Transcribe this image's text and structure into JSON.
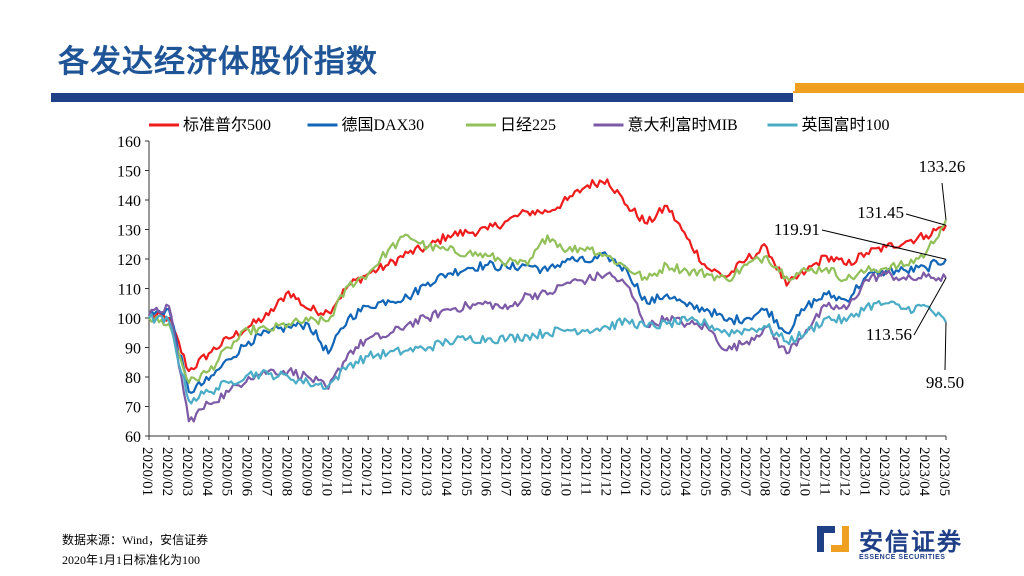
{
  "page": {
    "title": "各发达经济体股价指数",
    "source_note": "数据来源：Wind，安信证券",
    "base_note": "2020年1月1日标准化为100",
    "logo_cn": "安信证券",
    "logo_en": "ESSENCE SECURITIES"
  },
  "colors": {
    "title": "#1f5597",
    "bar_blue": "#1f3f87",
    "bar_orange": "#f0a020"
  },
  "chart_data": {
    "type": "line",
    "title": "",
    "xlabel": "",
    "ylabel": "",
    "ylim": [
      60,
      160
    ],
    "yticks": [
      "160",
      "150",
      "140",
      "130",
      "120",
      "110",
      "100",
      "90",
      "80",
      "70",
      "60"
    ],
    "categories": [
      "2020/01",
      "2020/02",
      "2020/03",
      "2020/04",
      "2020/05",
      "2020/06",
      "2020/07",
      "2020/08",
      "2020/09",
      "2020/10",
      "2020/11",
      "2020/12",
      "2021/01",
      "2021/02",
      "2021/03",
      "2021/04",
      "2021/05",
      "2021/06",
      "2021/07",
      "2021/08",
      "2021/09",
      "2021/10",
      "2021/11",
      "2021/12",
      "2022/01",
      "2022/02",
      "2022/03",
      "2022/04",
      "2022/05",
      "2022/06",
      "2022/07",
      "2022/08",
      "2022/09",
      "2022/10",
      "2022/11",
      "2022/12",
      "2023/01",
      "2023/02",
      "2023/03",
      "2023/04",
      "2023/05"
    ],
    "legend_position": "top",
    "series": [
      {
        "name": "标准普尔500",
        "color": "#ee1c1c",
        "values": [
          101,
          100,
          82,
          88,
          93,
          97,
          101,
          109,
          103,
          102,
          111,
          115,
          118,
          122,
          124,
          128,
          129,
          130,
          133,
          136,
          136,
          140,
          145,
          147,
          138,
          132,
          138,
          127,
          117,
          114,
          120,
          124,
          111,
          116,
          121,
          118,
          122,
          124,
          126,
          128,
          131.45
        ]
      },
      {
        "name": "德国DAX30",
        "color": "#1266b8",
        "values": [
          101,
          103,
          75,
          79,
          86,
          92,
          95,
          97,
          98,
          88,
          100,
          104,
          106,
          107,
          112,
          115,
          117,
          118,
          117,
          118,
          116,
          120,
          119,
          121,
          116,
          105,
          108,
          104,
          103,
          99,
          100,
          103,
          95,
          104,
          108,
          106,
          114,
          116,
          116,
          117,
          119.91
        ]
      },
      {
        "name": "日经225",
        "color": "#92c05a",
        "values": [
          100,
          98,
          78,
          82,
          90,
          96,
          96,
          98,
          99,
          99,
          111,
          115,
          123,
          128,
          124,
          123,
          122,
          121,
          119,
          118,
          128,
          123,
          124,
          121,
          117,
          113,
          118,
          116,
          115,
          113,
          118,
          121,
          114,
          116,
          117,
          113,
          116,
          117,
          118,
          122,
          133.26
        ]
      },
      {
        "name": "意大利富时MIB",
        "color": "#7d5aa6",
        "values": [
          101,
          104,
          65,
          71,
          75,
          80,
          82,
          82,
          80,
          76,
          88,
          93,
          94,
          98,
          100,
          103,
          104,
          105,
          103,
          108,
          108,
          112,
          113,
          115,
          111,
          97,
          100,
          98,
          97,
          89,
          92,
          97,
          88,
          96,
          104,
          103,
          113,
          115,
          113,
          114,
          113.56
        ]
      },
      {
        "name": "英国富时100",
        "color": "#4bacc6",
        "values": [
          100,
          99,
          72,
          75,
          78,
          81,
          81,
          80,
          78,
          77,
          84,
          87,
          88,
          89,
          90,
          92,
          93,
          93,
          93,
          94,
          95,
          96,
          96,
          97,
          99,
          97,
          98,
          99,
          98,
          95,
          96,
          97,
          92,
          95,
          100,
          99,
          104,
          105,
          103,
          104,
          98.5
        ]
      }
    ],
    "end_labels": [
      {
        "series": "日经225",
        "text": "133.26"
      },
      {
        "series": "标准普尔500",
        "text": "131.45"
      },
      {
        "series": "德国DAX30",
        "text": "119.91"
      },
      {
        "series": "意大利富时MIB",
        "text": "113.56"
      },
      {
        "series": "英国富时100",
        "text": "98.50"
      }
    ]
  }
}
